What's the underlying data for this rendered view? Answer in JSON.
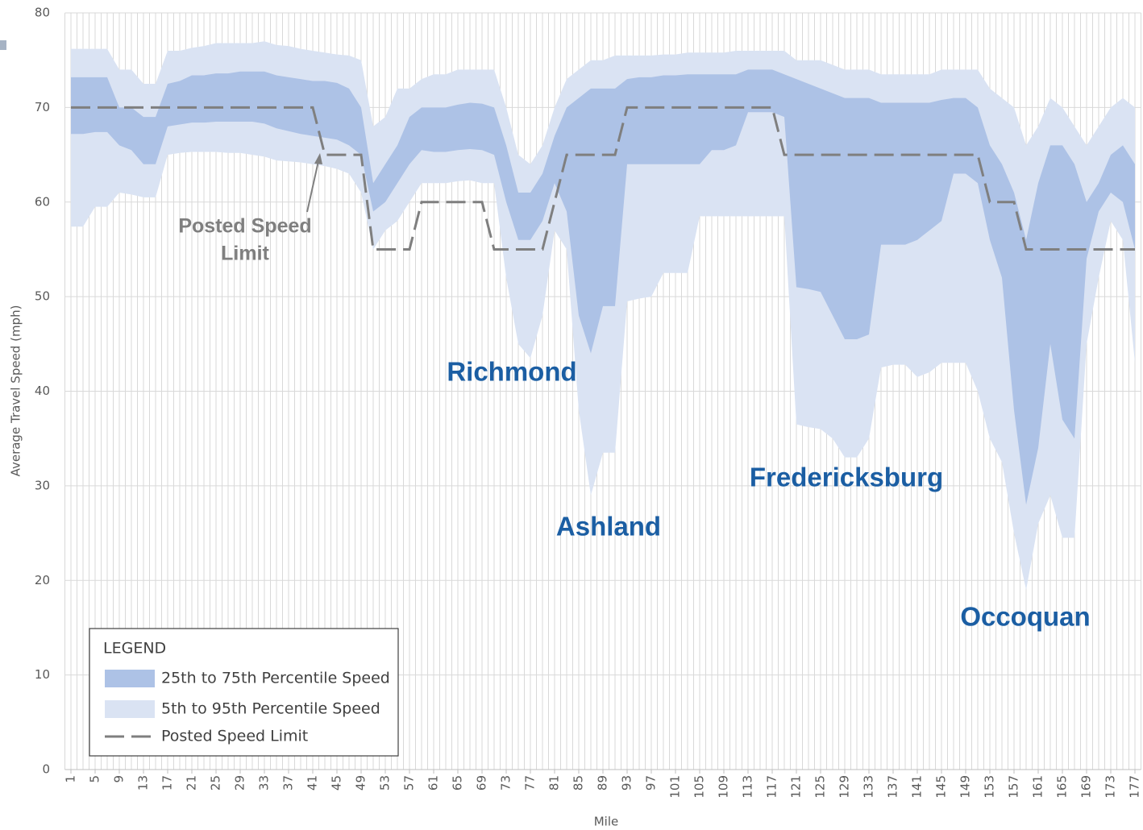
{
  "chart_data": {
    "type": "band-line",
    "x_label": "Mile",
    "y_label": "Average Travel Speed (mph)",
    "x": [
      1,
      3,
      5,
      7,
      9,
      11,
      13,
      15,
      17,
      19,
      21,
      23,
      25,
      27,
      29,
      31,
      33,
      35,
      37,
      39,
      41,
      43,
      45,
      47,
      49,
      51,
      53,
      55,
      57,
      59,
      61,
      63,
      65,
      67,
      69,
      71,
      73,
      75,
      77,
      79,
      81,
      83,
      85,
      87,
      89,
      91,
      93,
      95,
      97,
      99,
      101,
      103,
      105,
      107,
      109,
      111,
      113,
      115,
      117,
      119,
      121,
      123,
      125,
      127,
      129,
      131,
      133,
      135,
      137,
      139,
      141,
      143,
      145,
      147,
      149,
      151,
      153,
      155,
      157,
      159,
      161,
      163,
      165,
      167,
      169,
      171,
      173,
      175,
      177
    ],
    "series": [
      {
        "name": "5th to 95th Percentile Speed",
        "color": "#dae3f3",
        "upper": [
          76.2,
          76.2,
          76.2,
          76.2,
          74,
          74,
          72.5,
          72.5,
          76,
          76,
          76.3,
          76.5,
          76.8,
          76.8,
          76.8,
          76.8,
          77,
          76.6,
          76.5,
          76.2,
          76,
          75.8,
          75.6,
          75.5,
          75,
          68,
          69,
          72,
          72,
          73,
          73.5,
          73.5,
          74,
          74,
          74,
          74,
          70,
          65,
          64,
          66,
          70,
          73,
          74,
          75,
          75,
          75.5,
          75.5,
          75.5,
          75.5,
          75.6,
          75.6,
          75.8,
          75.8,
          75.8,
          75.8,
          76,
          76,
          76,
          76,
          76,
          75,
          75,
          75,
          74.5,
          74,
          74,
          74,
          73.5,
          73.5,
          73.5,
          73.5,
          73.5,
          74,
          74,
          74,
          74,
          72,
          71,
          70,
          66,
          68,
          71,
          70,
          68,
          66,
          68,
          70,
          71,
          70
        ],
        "lower": [
          57.4,
          57.4,
          59.5,
          59.5,
          61,
          60.8,
          60.5,
          60.5,
          65,
          65.2,
          65.3,
          65.3,
          65.3,
          65.2,
          65.2,
          65,
          64.8,
          64.4,
          64.3,
          64.2,
          64,
          63.8,
          63.5,
          63,
          61,
          55,
          57,
          58,
          60,
          62,
          62,
          62,
          62.2,
          62.3,
          62,
          62,
          52,
          45,
          43.5,
          48,
          57,
          55,
          38,
          29,
          33.5,
          33.5,
          49.5,
          49.8,
          50,
          52.5,
          52.5,
          52.5,
          58.5,
          58.5,
          58.5,
          58.5,
          58.5,
          58.5,
          58.5,
          58.5,
          36.5,
          36.2,
          36,
          35,
          33,
          33,
          35,
          42.5,
          42.8,
          42.8,
          41.5,
          42,
          43,
          43,
          43,
          40,
          35,
          32.5,
          25,
          19,
          26,
          29,
          24.5,
          24.5,
          45,
          52,
          58,
          56,
          43
        ]
      },
      {
        "name": "25th to 75th Percentile Speed",
        "color": "#adc2e6",
        "upper": [
          73.2,
          73.2,
          73.2,
          73.2,
          70,
          70,
          69,
          69,
          72.5,
          72.8,
          73.4,
          73.4,
          73.6,
          73.6,
          73.8,
          73.8,
          73.8,
          73.4,
          73.2,
          73,
          72.8,
          72.8,
          72.6,
          72,
          70,
          62,
          64,
          66,
          69,
          70,
          70,
          70,
          70.3,
          70.5,
          70.4,
          70,
          66,
          61,
          61,
          63,
          67,
          70,
          71,
          72,
          72,
          72,
          73,
          73.2,
          73.2,
          73.4,
          73.4,
          73.5,
          73.5,
          73.5,
          73.5,
          73.5,
          74,
          74,
          74,
          73.5,
          73,
          72.5,
          72,
          71.5,
          71,
          71,
          71,
          70.5,
          70.5,
          70.5,
          70.5,
          70.5,
          70.8,
          71,
          71,
          70,
          66,
          64,
          61,
          56,
          62,
          66,
          66,
          64,
          60,
          62,
          65,
          66,
          64
        ],
        "lower": [
          67.2,
          67.2,
          67.4,
          67.4,
          66,
          65.5,
          64,
          64,
          68,
          68.2,
          68.4,
          68.4,
          68.5,
          68.5,
          68.5,
          68.5,
          68.3,
          67.8,
          67.5,
          67.2,
          67,
          66.8,
          66.6,
          66,
          65,
          59,
          60,
          62,
          64,
          65.5,
          65.3,
          65.3,
          65.5,
          65.6,
          65.5,
          65,
          60,
          56,
          56,
          58,
          62,
          59,
          48,
          44,
          49,
          49,
          64,
          64,
          64,
          64,
          64,
          64,
          64,
          65.5,
          65.5,
          66,
          69.5,
          69.5,
          69.5,
          69,
          51,
          50.8,
          50.5,
          48,
          45.5,
          45.5,
          46,
          55.5,
          55.5,
          55.5,
          56,
          57,
          58,
          63,
          63,
          62,
          56,
          52,
          38,
          28,
          34,
          45,
          37,
          35,
          54,
          59,
          61,
          60,
          55
        ]
      },
      {
        "name": "Posted Speed Limit",
        "color": "#7f7f7f",
        "values": [
          70,
          70,
          70,
          70,
          70,
          70,
          70,
          70,
          70,
          70,
          70,
          70,
          70,
          70,
          70,
          70,
          70,
          70,
          70,
          70,
          70,
          65,
          65,
          65,
          65,
          55,
          55,
          55,
          55,
          60,
          60,
          60,
          60,
          60,
          60,
          55,
          55,
          55,
          55,
          55,
          60,
          65,
          65,
          65,
          65,
          65,
          70,
          70,
          70,
          70,
          70,
          70,
          70,
          70,
          70,
          70,
          70,
          70,
          70,
          65,
          65,
          65,
          65,
          65,
          65,
          65,
          65,
          65,
          65,
          65,
          65,
          65,
          65,
          65,
          65,
          65,
          60,
          60,
          60,
          55,
          55,
          55,
          55,
          55,
          55,
          55,
          55,
          55,
          55
        ]
      }
    ],
    "xlim": [
      0,
      178
    ],
    "xticks": [
      1,
      5,
      9,
      13,
      17,
      21,
      25,
      29,
      33,
      37,
      41,
      45,
      49,
      53,
      57,
      61,
      65,
      69,
      73,
      77,
      81,
      85,
      89,
      93,
      97,
      101,
      105,
      109,
      113,
      117,
      121,
      125,
      129,
      133,
      137,
      141,
      145,
      149,
      153,
      157,
      161,
      165,
      169,
      173,
      177
    ],
    "ylim": [
      0,
      80
    ],
    "yticks": [
      0,
      10,
      20,
      30,
      40,
      50,
      60,
      70,
      80
    ],
    "grid": true,
    "legend": "lower left",
    "legend_title": "LEGEND",
    "annotations": [
      {
        "text": "Richmond",
        "color": "#1b5ea3"
      },
      {
        "text": "Ashland",
        "color": "#1b5ea3"
      },
      {
        "text": "Fredericksburg",
        "color": "#1b5ea3"
      },
      {
        "text": "Occoquan",
        "color": "#1b5ea3"
      },
      {
        "lines": [
          "Posted Speed",
          "Limit"
        ],
        "color": "#7f7f7f"
      }
    ]
  }
}
